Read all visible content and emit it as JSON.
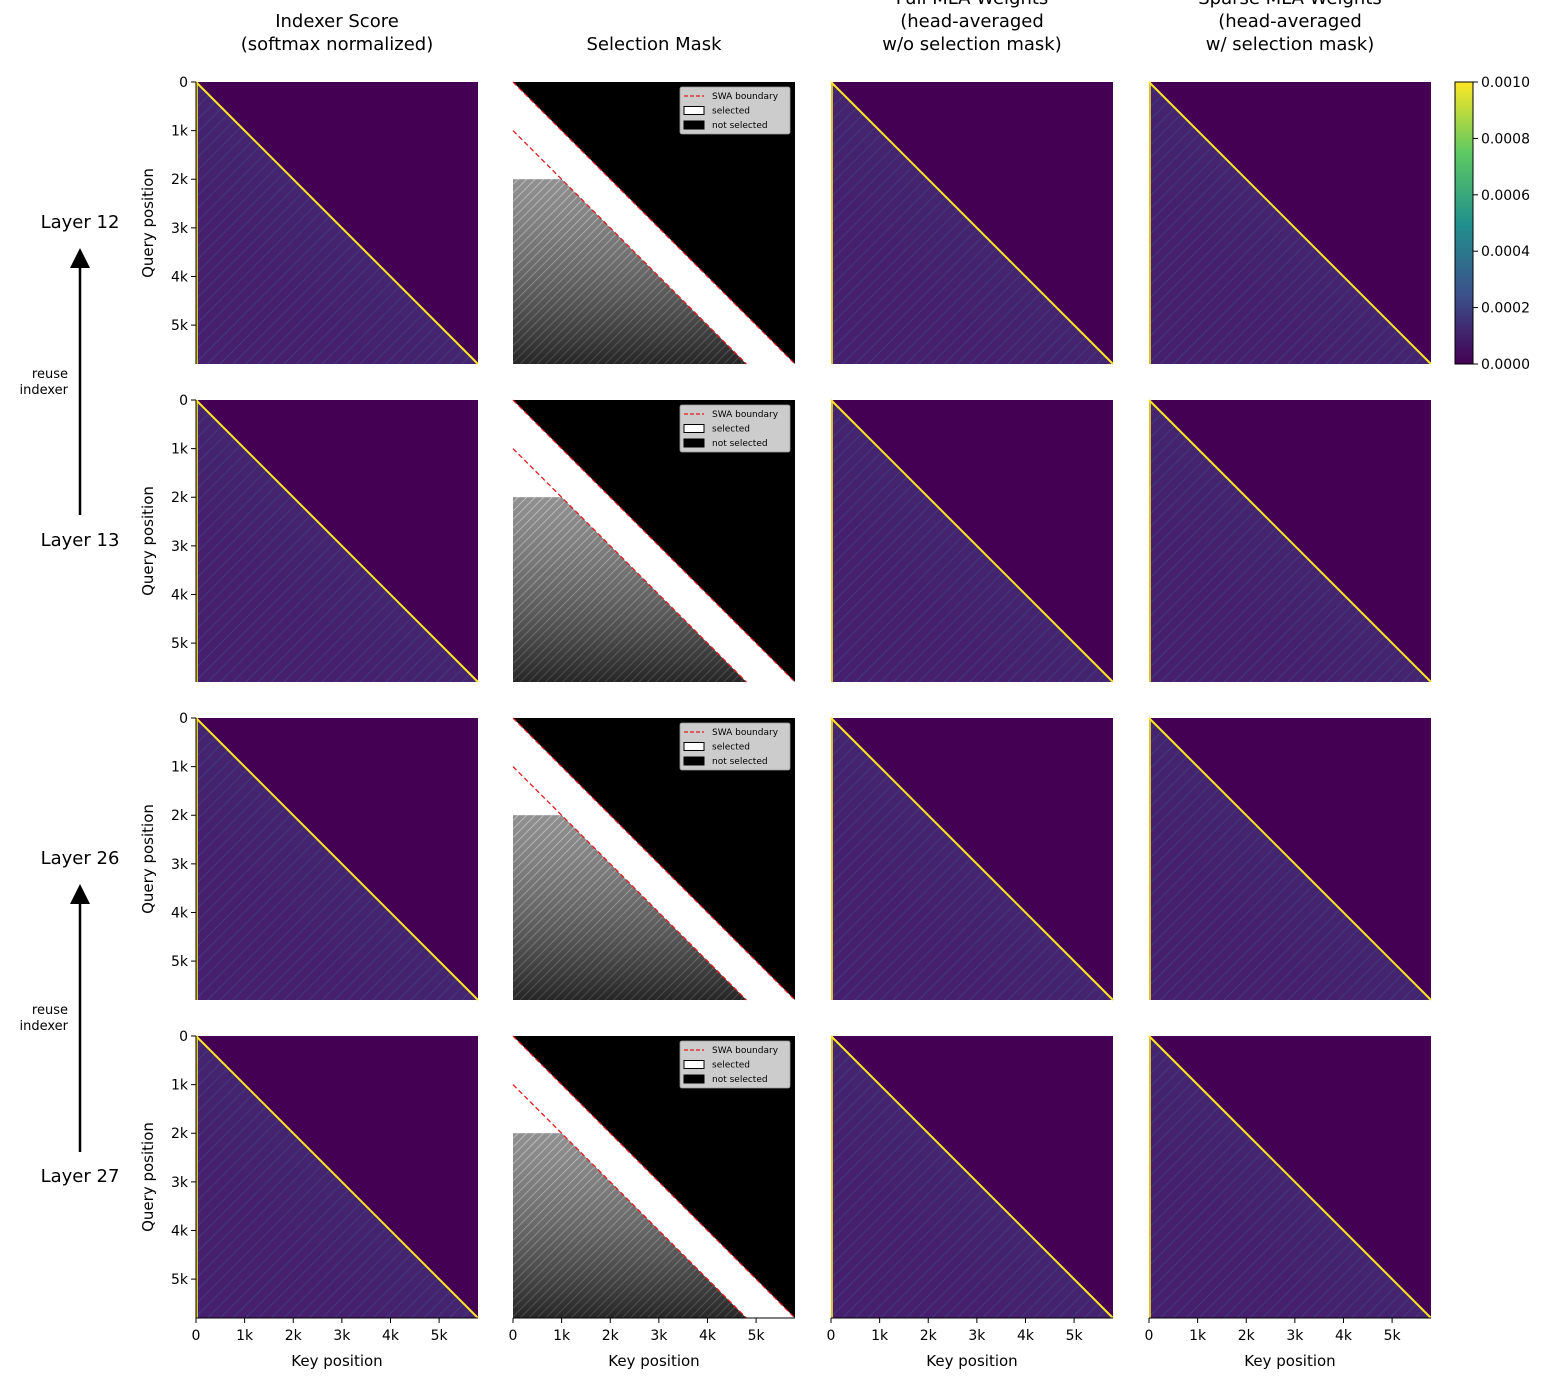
{
  "chart_data": {
    "type": "heatmap-grid",
    "columns": [
      {
        "title": "Indexer Score\n(softmax normalized)"
      },
      {
        "title": "Selection Mask",
        "legend": [
          "SWA boundary",
          "selected",
          "not selected"
        ],
        "swa_boundary_offsets": [
          0,
          1000
        ]
      },
      {
        "title": "Full MLA Weights\n(head-averaged\nw/o selection mask)"
      },
      {
        "title": "Sparse MLA Weights\n(head-averaged\nw/ selection mask)"
      }
    ],
    "rows": [
      "Layer 12",
      "Layer 13",
      "Layer 26",
      "Layer 27"
    ],
    "annotations": [
      "reuse\nindexer",
      "reuse\nindexer"
    ],
    "xlabel": "Key position",
    "ylabel": "Query position",
    "xlim": [
      0,
      5800
    ],
    "ylim": [
      0,
      5800
    ],
    "y_inverted": true,
    "xticks": [
      0,
      {
        "value": 1000,
        "label": "1k"
      },
      {
        "value": 2000,
        "label": "2k"
      },
      {
        "value": 3000,
        "label": "3k"
      },
      {
        "value": 4000,
        "label": "4k"
      },
      {
        "value": 5000,
        "label": "5k"
      }
    ],
    "yticks": [
      0,
      {
        "value": 1000,
        "label": "1k"
      },
      {
        "value": 2000,
        "label": "2k"
      },
      {
        "value": 3000,
        "label": "3k"
      },
      {
        "value": 4000,
        "label": "4k"
      },
      {
        "value": 5000,
        "label": "5k"
      }
    ],
    "colorbar": {
      "lim": [
        0,
        0.001
      ],
      "colors": [
        "#440154",
        "#3b528b",
        "#21918c",
        "#5ec962",
        "#fde725"
      ],
      "ticks": [
        {
          "value": 0,
          "label": "0.0000"
        },
        {
          "value": 0.0002,
          "label": "0.0002"
        },
        {
          "value": 0.0004,
          "label": "0.0004"
        },
        {
          "value": 0.0006,
          "label": "0.0006"
        },
        {
          "value": 0.0008,
          "label": "0.0008"
        },
        {
          "value": 0.001,
          "label": "0.0010"
        }
      ]
    }
  }
}
